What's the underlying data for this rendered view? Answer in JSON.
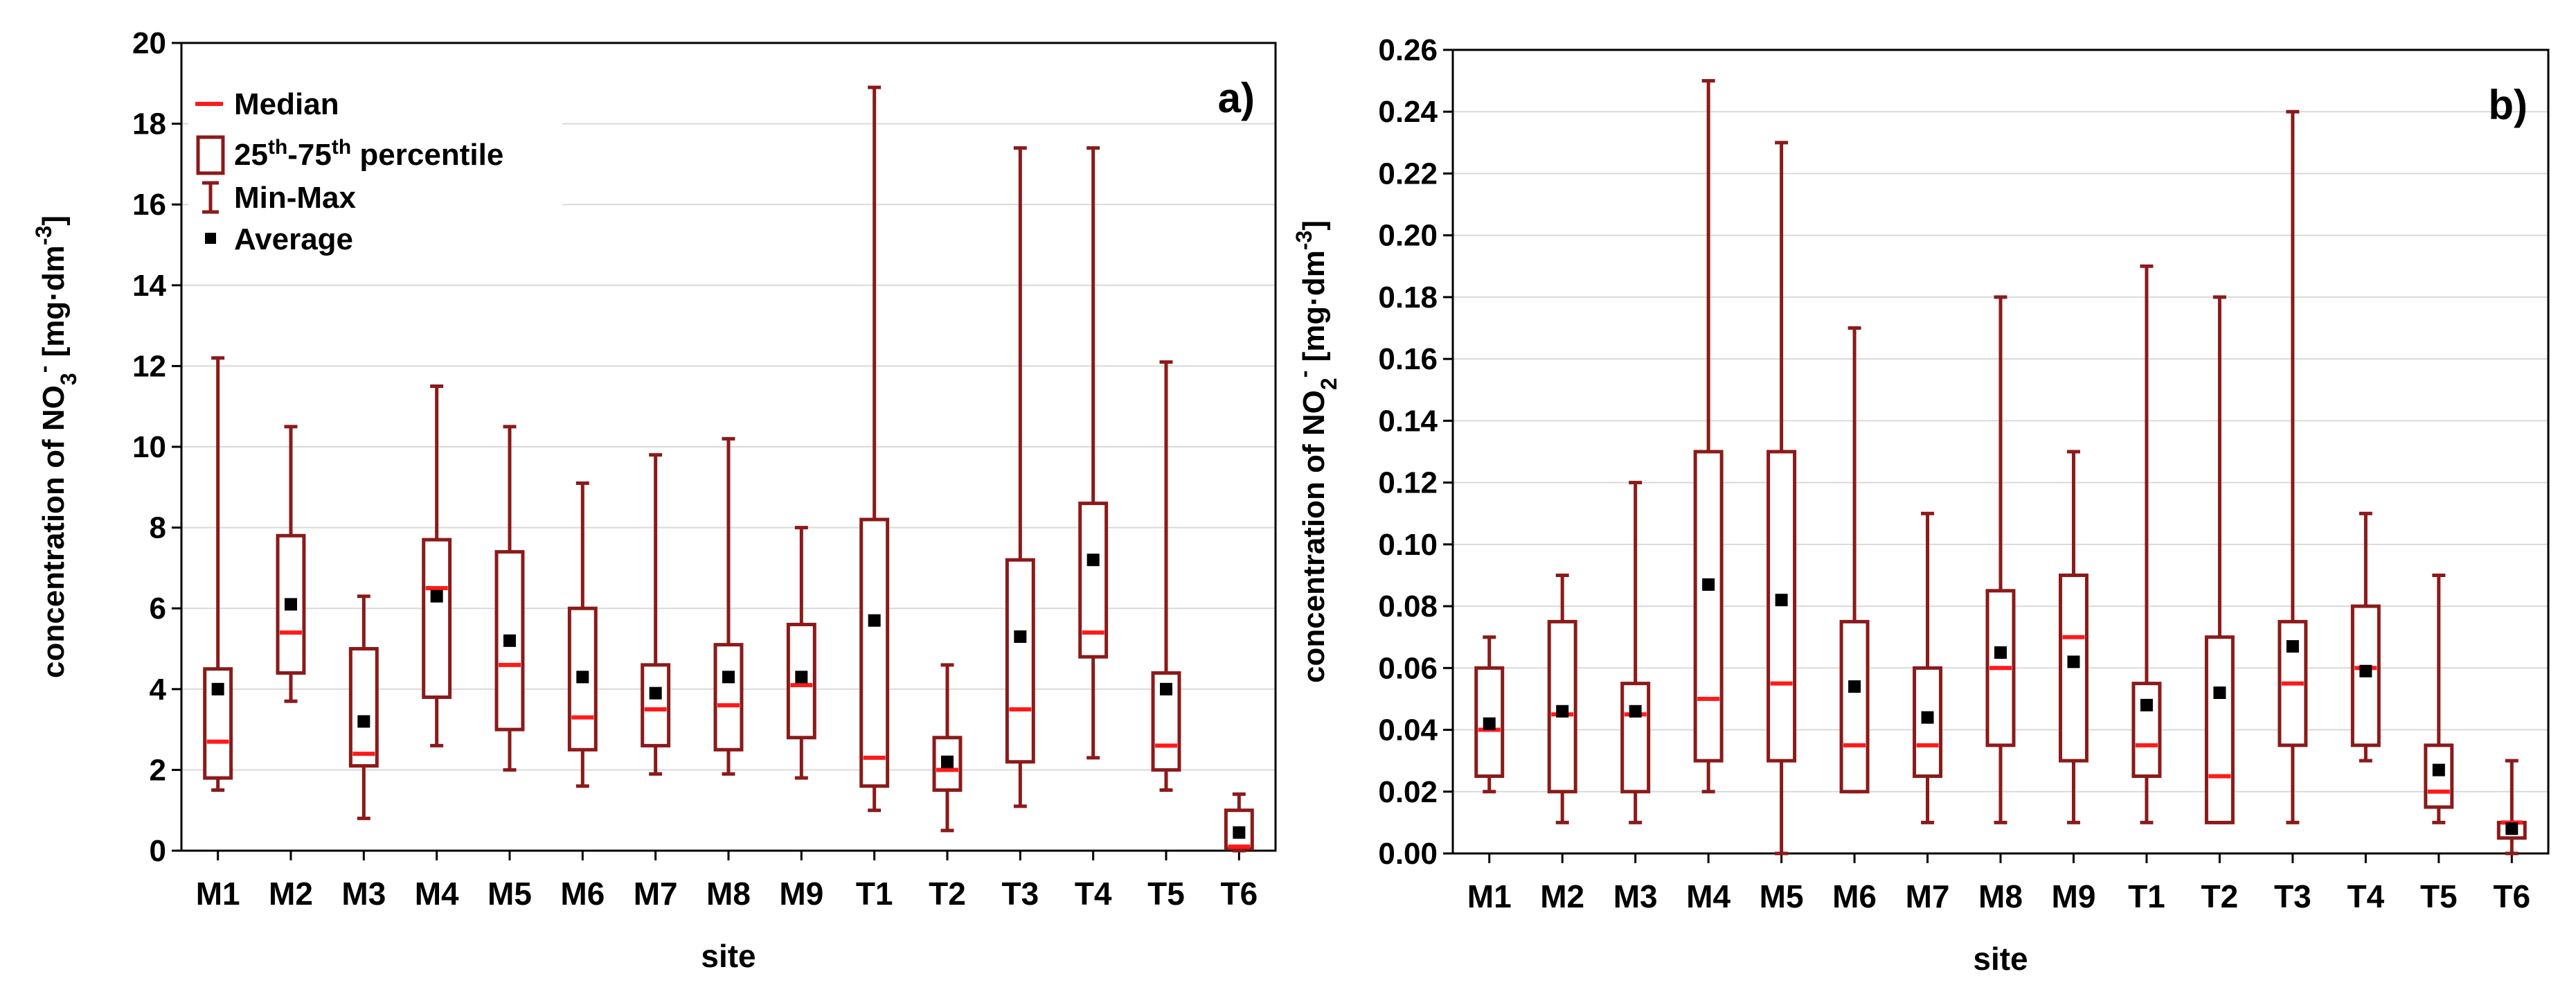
{
  "colors": {
    "box": "#8b1a1a",
    "median": "#ff1a1a",
    "mean": "#000000",
    "grid": "#d9d9d9"
  },
  "legend": {
    "median": "Median",
    "percentile_a": "25",
    "percentile_sup1": "th",
    "percentile_b": "-75",
    "percentile_sup2": "th",
    "percentile_c": " percentile",
    "minmax": "Min-Max",
    "average": "Average"
  },
  "chart_data": [
    {
      "type": "boxplot",
      "panel_label": "a)",
      "xlabel": "site",
      "ylabel": {
        "prefix": "concentration of NO",
        "sub": "3",
        "sup": "-",
        "mid": " [mg·dm",
        "unit_sup": "-3",
        "suffix": "]"
      },
      "ylim": [
        0,
        20
      ],
      "yticks": [
        0,
        2,
        4,
        6,
        8,
        10,
        12,
        14,
        16,
        18,
        20
      ],
      "ytick_labels": [
        "0",
        "2",
        "4",
        "6",
        "8",
        "10",
        "12",
        "14",
        "16",
        "18",
        "20"
      ],
      "categories": [
        "M1",
        "M2",
        "M3",
        "M4",
        "M5",
        "M6",
        "M7",
        "M8",
        "M9",
        "T1",
        "T2",
        "T3",
        "T4",
        "T5",
        "T6"
      ],
      "min": [
        1.5,
        3.7,
        0.8,
        2.6,
        2.0,
        1.6,
        1.9,
        1.9,
        1.8,
        1.0,
        0.5,
        1.1,
        2.3,
        1.5,
        0.0
      ],
      "q1": [
        1.8,
        4.4,
        2.1,
        3.8,
        3.0,
        2.5,
        2.6,
        2.5,
        2.8,
        1.6,
        1.5,
        2.2,
        4.8,
        2.0,
        0.05
      ],
      "median": [
        2.7,
        5.4,
        2.4,
        6.5,
        4.6,
        3.3,
        3.5,
        3.6,
        4.1,
        2.3,
        2.0,
        3.5,
        5.4,
        2.6,
        0.1
      ],
      "q3": [
        4.5,
        7.8,
        5.0,
        7.7,
        7.4,
        6.0,
        4.6,
        5.1,
        5.6,
        8.2,
        2.8,
        7.2,
        8.6,
        4.4,
        1.0
      ],
      "max": [
        12.2,
        10.5,
        6.3,
        11.5,
        10.5,
        9.1,
        9.8,
        10.2,
        8.0,
        18.9,
        4.6,
        17.4,
        17.4,
        12.1,
        1.4
      ],
      "mean": [
        4.0,
        6.1,
        3.2,
        6.3,
        5.2,
        4.3,
        3.9,
        4.3,
        4.3,
        5.7,
        2.2,
        5.3,
        7.2,
        4.0,
        0.45
      ],
      "legend": true
    },
    {
      "type": "boxplot",
      "panel_label": "b)",
      "xlabel": "site",
      "ylabel": {
        "prefix": "concentration of NO",
        "sub": "2",
        "sup": "-",
        "mid": " [mg·dm",
        "unit_sup": "-3",
        "suffix": "]"
      },
      "ylim": [
        0,
        0.26
      ],
      "yticks": [
        0,
        0.02,
        0.04,
        0.06,
        0.08,
        0.1,
        0.12,
        0.14,
        0.16,
        0.18,
        0.2,
        0.22,
        0.24,
        0.26
      ],
      "ytick_labels": [
        "0.00",
        "0.02",
        "0.04",
        "0.06",
        "0.08",
        "0.10",
        "0.12",
        "0.14",
        "0.16",
        "0.18",
        "0.20",
        "0.22",
        "0.24",
        "0.26"
      ],
      "categories": [
        "M1",
        "M2",
        "M3",
        "M4",
        "M5",
        "M6",
        "M7",
        "M8",
        "M9",
        "T1",
        "T2",
        "T3",
        "T4",
        "T5",
        "T6"
      ],
      "min": [
        0.02,
        0.01,
        0.01,
        0.02,
        0.0,
        0.02,
        0.01,
        0.01,
        0.01,
        0.01,
        0.01,
        0.01,
        0.03,
        0.01,
        0.0
      ],
      "q1": [
        0.025,
        0.02,
        0.02,
        0.03,
        0.03,
        0.02,
        0.025,
        0.035,
        0.03,
        0.025,
        0.01,
        0.035,
        0.035,
        0.015,
        0.005
      ],
      "median": [
        0.04,
        0.045,
        0.045,
        0.05,
        0.055,
        0.035,
        0.035,
        0.06,
        0.07,
        0.035,
        0.025,
        0.055,
        0.06,
        0.02,
        0.01
      ],
      "q3": [
        0.06,
        0.075,
        0.055,
        0.13,
        0.13,
        0.075,
        0.06,
        0.085,
        0.09,
        0.055,
        0.07,
        0.075,
        0.08,
        0.035,
        0.01
      ],
      "max": [
        0.07,
        0.09,
        0.12,
        0.25,
        0.23,
        0.17,
        0.11,
        0.18,
        0.13,
        0.19,
        0.18,
        0.24,
        0.11,
        0.09,
        0.03
      ],
      "mean": [
        0.042,
        0.046,
        0.046,
        0.087,
        0.082,
        0.054,
        0.044,
        0.065,
        0.062,
        0.048,
        0.052,
        0.067,
        0.059,
        0.027,
        0.008
      ],
      "legend": false
    }
  ]
}
